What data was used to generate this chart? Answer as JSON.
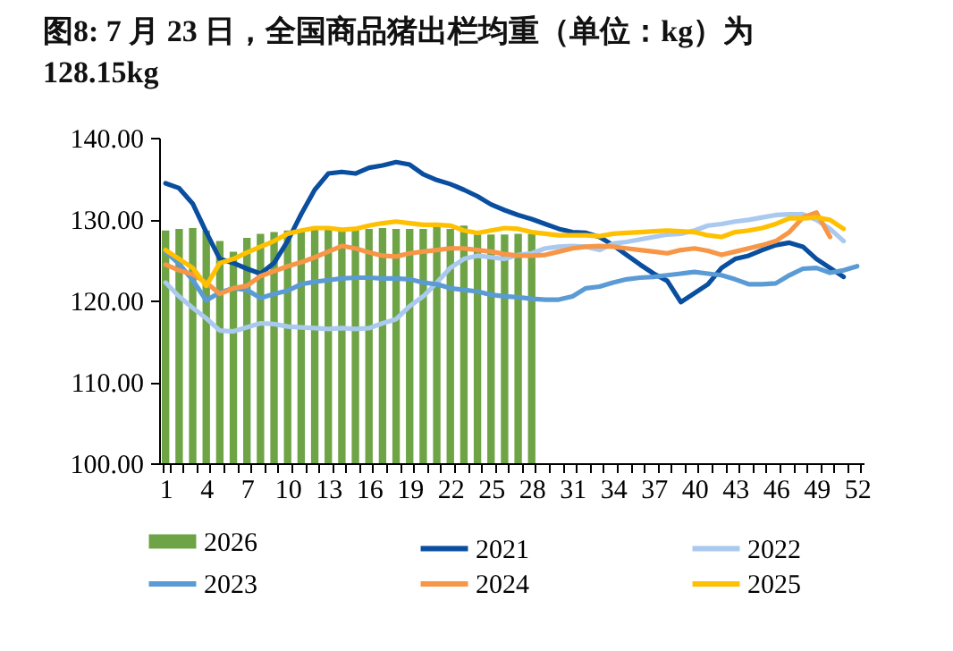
{
  "chart_data": {
    "type": "bar",
    "title": "图8: 7 月 23 日，全国商品猪出栏均重（单位：kg）为 128.15kg",
    "categories": [
      "1",
      null,
      null,
      "4",
      null,
      null,
      "7",
      null,
      null,
      "10",
      null,
      null,
      "13",
      null,
      null,
      "16",
      null,
      null,
      "19",
      null,
      null,
      "22",
      null,
      null,
      "25",
      null,
      null,
      "28",
      null,
      null,
      "31",
      null,
      null,
      "34",
      null,
      null,
      "37",
      null,
      null,
      "40",
      null,
      null,
      "43",
      null,
      null,
      "46",
      null,
      null,
      "49",
      null,
      null,
      "52"
    ],
    "series": [
      {
        "name": "2026",
        "color": "#6ea346",
        "values": [
          128.6,
          128.8,
          128.9,
          128.6,
          127.3,
          126.0,
          127.7,
          128.2,
          128.4,
          128.6,
          128.6,
          128.7,
          128.7,
          128.8,
          128.8,
          128.8,
          128.9,
          128.8,
          128.8,
          128.8,
          129.2,
          128.8,
          129.2,
          128.1,
          128.1,
          128.1,
          128.2,
          128.2,
          null,
          null,
          null,
          null,
          null,
          null,
          null,
          null,
          null,
          null,
          null,
          null,
          null,
          null,
          null,
          null,
          null,
          null,
          null,
          null,
          null,
          null,
          null,
          null
        ]
      },
      {
        "name": "2021",
        "type": "line",
        "color": "#0a4ea0",
        "values": [
          134.4,
          133.8,
          131.9,
          128.4,
          125.1,
          124.6,
          123.9,
          123.3,
          124.6,
          127.3,
          130.6,
          133.6,
          135.6,
          135.8,
          135.6,
          136.3,
          136.6,
          137.0,
          136.7,
          135.5,
          134.8,
          134.3,
          133.6,
          132.8,
          131.8,
          131.1,
          130.5,
          130.0,
          129.4,
          128.8,
          128.4,
          128.3,
          127.8,
          126.8,
          125.6,
          124.4,
          123.3,
          122.4,
          119.8,
          120.9,
          122.0,
          124.0,
          125.1,
          125.5,
          126.2,
          126.8,
          127.1,
          126.6,
          125.1,
          124.0,
          122.9,
          null
        ]
      },
      {
        "name": "2022",
        "type": "line",
        "color": "#a9c9ee",
        "values": [
          122.2,
          120.5,
          119.1,
          117.8,
          116.3,
          116.2,
          116.7,
          117.2,
          117.1,
          116.8,
          116.7,
          116.6,
          116.5,
          116.6,
          116.5,
          116.6,
          117.2,
          117.7,
          119.3,
          120.5,
          122.2,
          124.0,
          125.1,
          125.5,
          125.3,
          125.1,
          125.6,
          125.8,
          126.4,
          126.6,
          126.7,
          126.6,
          126.2,
          127.0,
          127.2,
          127.5,
          127.8,
          128.1,
          128.2,
          128.6,
          129.2,
          129.4,
          129.7,
          129.9,
          130.2,
          130.5,
          130.6,
          130.6,
          129.9,
          128.8,
          127.3,
          null
        ]
      },
      {
        "name": "2023",
        "type": "line",
        "color": "#5b9bd5",
        "values": [
          126.0,
          124.5,
          122.5,
          120.0,
          121.0,
          121.5,
          121.3,
          120.3,
          120.8,
          121.2,
          122.0,
          122.3,
          122.5,
          122.7,
          122.8,
          122.8,
          122.7,
          122.7,
          122.6,
          122.2,
          122.0,
          121.5,
          121.3,
          121.1,
          120.7,
          120.5,
          120.4,
          120.2,
          120.1,
          120.1,
          120.5,
          121.5,
          121.7,
          122.2,
          122.6,
          122.8,
          122.9,
          123.1,
          123.3,
          123.5,
          123.3,
          123.1,
          122.6,
          122.0,
          122.0,
          122.1,
          123.1,
          123.9,
          124.0,
          123.4,
          123.7,
          124.2
        ]
      },
      {
        "name": "2024",
        "type": "line",
        "color": "#f79646",
        "values": [
          124.4,
          123.7,
          123.2,
          122.2,
          120.8,
          121.5,
          121.8,
          123.0,
          123.6,
          124.2,
          124.7,
          125.3,
          126.0,
          126.7,
          126.4,
          125.9,
          125.5,
          125.4,
          125.8,
          126.0,
          126.2,
          126.4,
          126.4,
          126.2,
          126.0,
          125.7,
          125.5,
          125.5,
          125.6,
          126.0,
          126.4,
          126.6,
          126.7,
          126.6,
          126.4,
          126.2,
          126.0,
          125.8,
          126.2,
          126.4,
          126.1,
          125.6,
          126.0,
          126.4,
          126.8,
          127.3,
          128.4,
          130.2,
          130.8,
          127.8,
          null,
          null
        ]
      },
      {
        "name": "2025",
        "type": "line",
        "color": "#ffc000",
        "values": [
          126.2,
          125.1,
          124.0,
          121.8,
          124.6,
          125.1,
          125.9,
          126.6,
          127.3,
          128.2,
          128.6,
          128.9,
          128.9,
          128.7,
          128.8,
          129.2,
          129.5,
          129.7,
          129.5,
          129.3,
          129.3,
          129.2,
          128.6,
          128.3,
          128.6,
          128.9,
          128.8,
          128.4,
          128.2,
          128.0,
          128.0,
          128.0,
          127.9,
          128.2,
          128.3,
          128.4,
          128.5,
          128.6,
          128.5,
          128.4,
          128.0,
          127.8,
          128.4,
          128.6,
          128.9,
          129.4,
          130.1,
          130.1,
          130.2,
          129.9,
          128.8,
          null
        ]
      }
    ],
    "ylim": [
      100,
      140
    ],
    "yticks": [
      {
        "value": 100,
        "label": "100.00"
      },
      {
        "value": 110,
        "label": "110.00"
      },
      {
        "value": 120,
        "label": "120.00"
      },
      {
        "value": 130,
        "label": "130.00"
      },
      {
        "value": 140,
        "label": "140.00"
      }
    ],
    "grid": false,
    "legend": "bottom",
    "line_style": "solid",
    "marker": "none"
  }
}
